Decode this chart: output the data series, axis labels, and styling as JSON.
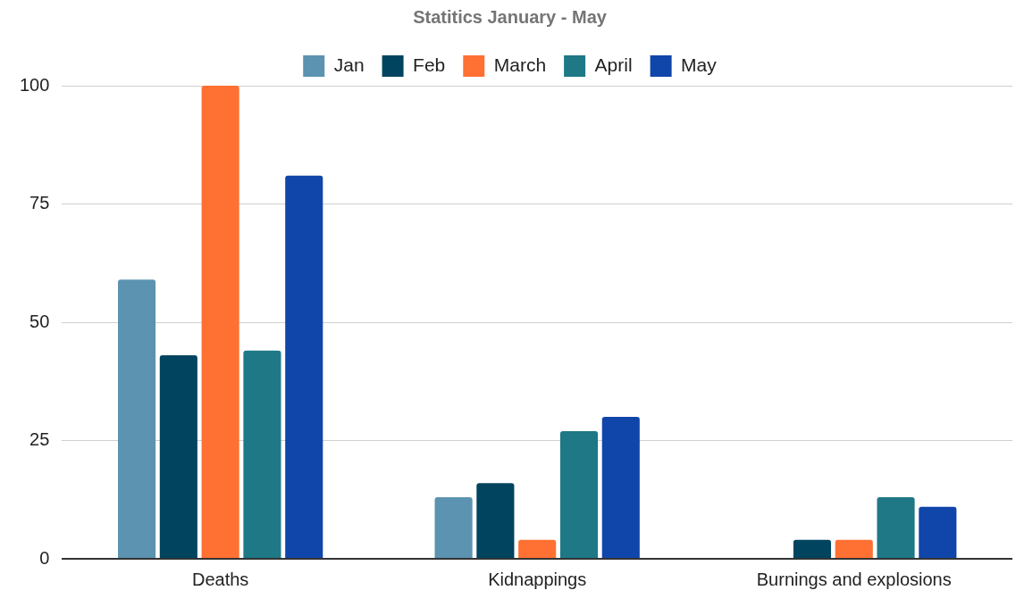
{
  "chart_data": {
    "type": "bar",
    "title": "Statitics January - May",
    "categories": [
      "Deaths",
      "Kidnappings",
      "Burnings and explosions"
    ],
    "series": [
      {
        "name": "Jan",
        "color": "#5b93b0",
        "values": [
          59,
          13,
          0
        ]
      },
      {
        "name": "Feb",
        "color": "#00445f",
        "values": [
          43,
          16,
          4
        ]
      },
      {
        "name": "March",
        "color": "#ff7033",
        "values": [
          100,
          4,
          4
        ]
      },
      {
        "name": "April",
        "color": "#1e7885",
        "values": [
          44,
          27,
          13
        ]
      },
      {
        "name": "May",
        "color": "#1045aa",
        "values": [
          81,
          30,
          11
        ]
      }
    ],
    "ylim": [
      0,
      100
    ],
    "yticks": [
      0,
      25,
      50,
      75,
      100
    ],
    "grid": "y",
    "legend": "top"
  }
}
